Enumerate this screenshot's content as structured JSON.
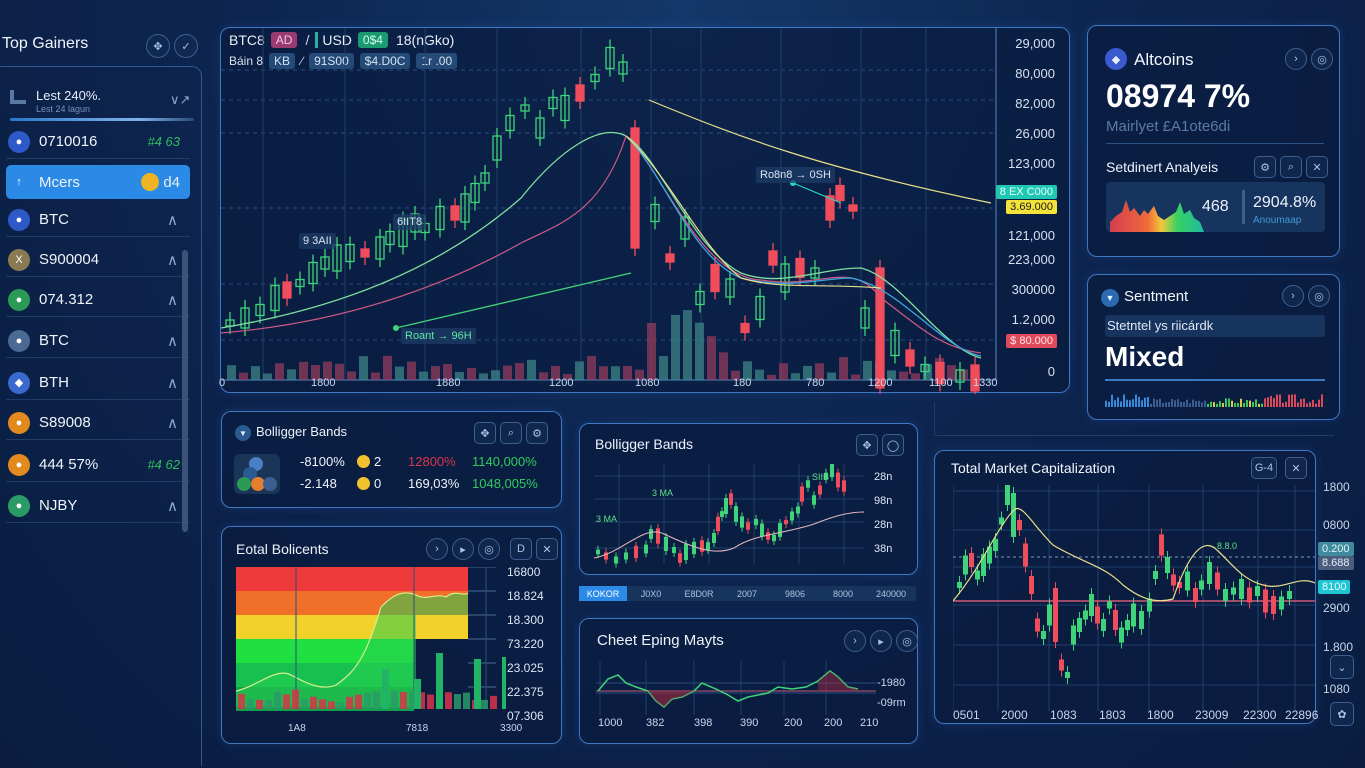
{
  "sidebar": {
    "title": "Top Gainers",
    "header_icons": [
      "move-icon",
      "check-icon"
    ],
    "summary": {
      "title": "Lest 240%.",
      "subtitle": "Lest 24 lagun",
      "trend": "∨↗"
    },
    "items": [
      {
        "label": "0710016",
        "change": "#4 63",
        "icon": "bitcoin-icon",
        "color": "#2f59c9",
        "trail": "change"
      },
      {
        "label": "Mcers",
        "change": "d4",
        "icon": "arrow-up-icon",
        "color": "#2a8ae6",
        "trail": "coin",
        "active": true
      },
      {
        "label": "BTC",
        "icon": "coin-icon",
        "color": "#2f59c9",
        "trail": "caret"
      },
      {
        "label": "S900004",
        "icon": "x-coin-icon",
        "color": "#8a7a52",
        "trail": "caret"
      },
      {
        "label": "074.312",
        "icon": "leaf-coin-icon",
        "color": "#2a9a55",
        "trail": "caret"
      },
      {
        "label": "BTC",
        "icon": "heart-coin-icon",
        "color": "#4a6a94",
        "trail": "caret"
      },
      {
        "label": "BTH",
        "icon": "ethereum-icon",
        "color": "#3a6ad0",
        "trail": "caret"
      },
      {
        "label": "S89008",
        "icon": "orange-coin-icon",
        "color": "#e38a1f",
        "trail": "caret"
      },
      {
        "label": "444 57%",
        "change": "#4 62",
        "icon": "orange-coin-icon",
        "color": "#e38a1f",
        "trail": "change"
      },
      {
        "label": "NJBY",
        "icon": "green-coin-icon",
        "color": "#2a9a66",
        "trail": "caret"
      }
    ]
  },
  "main_chart": {
    "pair": "BTC8",
    "tag1": "AD",
    "sep": "/",
    "quote": "USD",
    "tag2": "0$4",
    "interval": "18(nGko)",
    "row2_label": "Báin 8",
    "row2_tags": [
      "KB",
      "∕",
      "91S00",
      "$4.D0C",
      "1r .00"
    ],
    "y_labels": [
      "29,000",
      "80,000",
      "82,000",
      "26,000",
      "123,000",
      "121,000",
      "223,000",
      "300000",
      "1.2,000",
      "0"
    ],
    "price_tags": [
      {
        "label": "8 EX C000",
        "bg": "#1fc8b4",
        "color": "#e8fff8"
      },
      {
        "label": "3.69.000",
        "bg": "#f2e23a",
        "color": "#1a1a1a"
      },
      {
        "label": "$ 80.000",
        "bg": "#e04a5a",
        "color": "#ffe8ea"
      }
    ],
    "x_labels": [
      "0",
      "1800",
      "1880",
      "1200",
      "1080",
      "180",
      "780",
      "1200",
      "1100",
      "1330"
    ],
    "annotations": [
      "9 3AII",
      "6IIT8",
      "Ro8n8 → 0SH",
      "Roant → 96H"
    ]
  },
  "altcoins": {
    "title": "Altcoins",
    "value": "08974 7%",
    "subtitle": "Mairlyet £A1ote6di",
    "sentiment_title": "Setdinert Analyeis",
    "sent_value": "468",
    "sent_pct": "2904.8%",
    "sent_sub": "Anoumaap"
  },
  "sentiment": {
    "title": "Sentment",
    "subtitle": "Stetntel ys riicárdk",
    "value": "Mixed"
  },
  "bollinger_stats": {
    "title": "Bolligger Bands",
    "rows": [
      {
        "a": "-8100%",
        "b": "2",
        "c": "12800%",
        "d": "1140,000%",
        "c_color": "#d9354a"
      },
      {
        "a": "-2.148",
        "b": "0",
        "c": "169,03%",
        "d": "1048,005%",
        "c_color": "#eef3fb"
      }
    ]
  },
  "total_balances": {
    "title": "Eotal Bolicents",
    "y_labels": [
      "16800",
      "18.824",
      "18.300",
      "73.220",
      "23.025",
      "22.375",
      "07.306"
    ],
    "x_labels": [
      "1A8",
      "7818",
      "3300"
    ]
  },
  "bollinger_chart": {
    "title": "Bolligger Bands",
    "y_labels": [
      "28n",
      "98n",
      "28n",
      "38n"
    ],
    "annotations": [
      "3 MA",
      "3 MA",
      "SIIB"
    ],
    "tabs": [
      "KOKOR",
      "J0X0",
      "E8D0R",
      "2007",
      "9806",
      "8000",
      "240000"
    ]
  },
  "chest_moves": {
    "title": "Cheet Eping Mayts",
    "y_labels": [
      "-1980",
      "-09rm"
    ],
    "x_labels": [
      "1000",
      "382",
      "398",
      "390",
      "200",
      "200",
      "210"
    ]
  },
  "market_cap": {
    "title": "Total Market Capitalization",
    "btn": "G-4",
    "y_labels": [
      "1800",
      "0800",
      "2900",
      "1.800",
      "1080"
    ],
    "price_tags": [
      {
        "label": "0.200",
        "bg": "#3f8a9c",
        "color": "#e5f4fa"
      },
      {
        "label": "8.688",
        "bg": "#4a5d7d",
        "color": "#e5ecf6"
      },
      {
        "label": "8100",
        "bg": "#1ec6d3",
        "color": "#ecfdff"
      }
    ],
    "annotation": "8.8.0",
    "x_labels": [
      "0501",
      "2000",
      "1083",
      "1803",
      "1800",
      "23009",
      "22300",
      "22896"
    ]
  }
}
